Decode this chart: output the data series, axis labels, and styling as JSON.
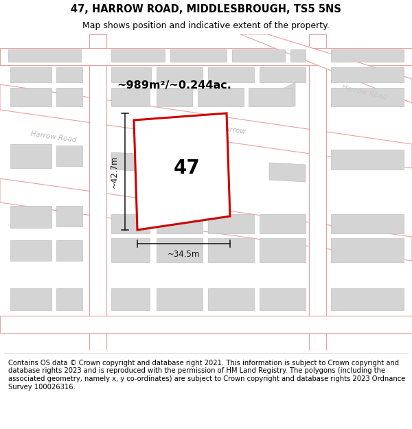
{
  "title": "47, HARROW ROAD, MIDDLESBROUGH, TS5 5NS",
  "subtitle": "Map shows position and indicative extent of the property.",
  "footer": "Contains OS data © Crown copyright and database right 2021. This information is subject to Crown copyright and database rights 2023 and is reproduced with the permission of HM Land Registry. The polygons (including the associated geometry, namely x, y co-ordinates) are subject to Crown copyright and database rights 2023 Ordnance Survey 100026316.",
  "map_bg": "#f2f2f2",
  "road_fill": "#ffffff",
  "road_stroke": "#e8a0a0",
  "building_fill": "#d4d4d4",
  "building_stroke": "#c0c0c0",
  "plot_stroke": "#cc0000",
  "plot_fill": "#ffffff",
  "dim_color": "#111111",
  "label_47": "47",
  "area_label": "~989m²/~0.244ac.",
  "dim_height": "~42.7m",
  "dim_width": "~34.5m",
  "harrow_road_label": "Harrow Road",
  "harrow_label_short": "Harrow",
  "title_fontsize": 10.5,
  "subtitle_fontsize": 9,
  "footer_fontsize": 7.2,
  "road_lw": 0.8
}
